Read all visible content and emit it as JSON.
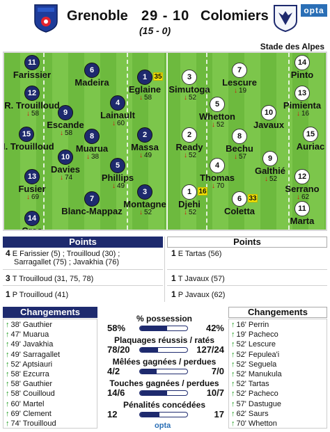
{
  "header": {
    "home_team": "Grenoble",
    "away_team": "Colomiers",
    "score": "29 - 10",
    "halftime": "(15 -  0)",
    "venue": "Stade des Alpes",
    "badge": "opta"
  },
  "colors": {
    "home": "#1e2a6e",
    "away": "#ffffff",
    "pitch": "#6dba3e",
    "sub_out": "#d21010",
    "sub_in": "#1a9a1a",
    "card": "#f5e400"
  },
  "home_players": [
    {
      "num": "11",
      "name": "Farissier",
      "sub": ""
    },
    {
      "num": "12",
      "name": "R. Trouilloud",
      "sub": "58"
    },
    {
      "num": "15",
      "name": "H. Trouilloud",
      "sub": ""
    },
    {
      "num": "13",
      "name": "Fusier",
      "sub": "69"
    },
    {
      "num": "14",
      "name": "Cros",
      "sub": ""
    },
    {
      "num": "6",
      "name": "Madeira",
      "sub": ""
    },
    {
      "num": "9",
      "name": "Escande",
      "sub": "58"
    },
    {
      "num": "8",
      "name": "Muarua",
      "sub": "38"
    },
    {
      "num": "10",
      "name": "Davies",
      "sub": "74"
    },
    {
      "num": "7",
      "name": "Blanc-Mappaz",
      "sub": ""
    },
    {
      "num": "1",
      "name": "Eglaine",
      "sub": "58",
      "card": "35"
    },
    {
      "num": "4",
      "name": "Lainault",
      "sub": "60"
    },
    {
      "num": "2",
      "name": "Massa",
      "sub": "49"
    },
    {
      "num": "5",
      "name": "Phillips",
      "sub": "49"
    },
    {
      "num": "3",
      "name": "Montagne",
      "sub": "52"
    }
  ],
  "away_players": [
    {
      "num": "3",
      "name": "Simutoga",
      "sub": "52"
    },
    {
      "num": "5",
      "name": "Whetton",
      "sub": "52"
    },
    {
      "num": "2",
      "name": "Ready",
      "sub": "52"
    },
    {
      "num": "4",
      "name": "Thomas",
      "sub": "70"
    },
    {
      "num": "1",
      "name": "Djehi",
      "sub": "52",
      "card": "16"
    },
    {
      "num": "7",
      "name": "Lescure",
      "sub": "19"
    },
    {
      "num": "8",
      "name": "Bechu",
      "sub": "57"
    },
    {
      "num": "6",
      "name": "Coletta",
      "sub": "",
      "card": "33"
    },
    {
      "num": "10",
      "name": "Javaux",
      "sub": ""
    },
    {
      "num": "9",
      "name": "Galthié",
      "sub": "52"
    },
    {
      "num": "14",
      "name": "Pinto",
      "sub": ""
    },
    {
      "num": "13",
      "name": "Pimienta",
      "sub": "16"
    },
    {
      "num": "15",
      "name": "Auriac",
      "sub": ""
    },
    {
      "num": "12",
      "name": "Serrano",
      "sub": "62"
    },
    {
      "num": "11",
      "name": "Marta",
      "sub": ""
    }
  ],
  "points": {
    "title": "Points",
    "home": [
      {
        "count": "4",
        "text": "E Farissier (5) ; Trouilloud (30) ;",
        "text2": "Sarragallet (75) ; Javakhia (76)"
      },
      {
        "count": "3",
        "text": "T Trouilloud (31, 75, 78)"
      },
      {
        "count": "1",
        "text": "P Trouilloud (41)"
      }
    ],
    "away": [
      {
        "count": "1",
        "text": "E Tartas (56)"
      },
      {
        "count": "1",
        "text": "T Javaux (57)"
      },
      {
        "count": "1",
        "text": "P Javaux (62)"
      }
    ]
  },
  "changes": {
    "title": "Changements",
    "home": [
      "38' Gauthier",
      "47' Muarua",
      "49' Javakhia",
      "49' Sarragallet",
      "52' Aptsiauri",
      "58' Ezcurra",
      "58' Gauthier",
      "58' Couilloud",
      "60' Martel",
      "69' Clement",
      "74' Trouilloud"
    ],
    "away": [
      "16' Perrin",
      "19' Pacheco",
      "52' Lescure",
      "52' Fepulea'i",
      "52' Seguela",
      "52' Manukula",
      "52' Tartas",
      "52' Pacheco",
      "57' Dastugue",
      "62' Saurs",
      "70' Whetton"
    ]
  },
  "stats": [
    {
      "label": "% possession",
      "home": "58%",
      "away": "42%",
      "fraction": 0.58
    },
    {
      "label": "Plaquages réussis / ratés",
      "home": "78/20",
      "away": "127/24",
      "fraction": 0.38
    },
    {
      "label": "Mêlées gagnées / perdues",
      "home": "4/2",
      "away": "7/0",
      "fraction": 0.36
    },
    {
      "label": "Touches gagnées / perdues",
      "home": "14/6",
      "away": "10/7",
      "fraction": 0.58
    },
    {
      "label": "Pénalités concédées",
      "home": "12",
      "away": "17",
      "fraction": 0.41
    }
  ],
  "footer": {
    "brand": "opta"
  }
}
